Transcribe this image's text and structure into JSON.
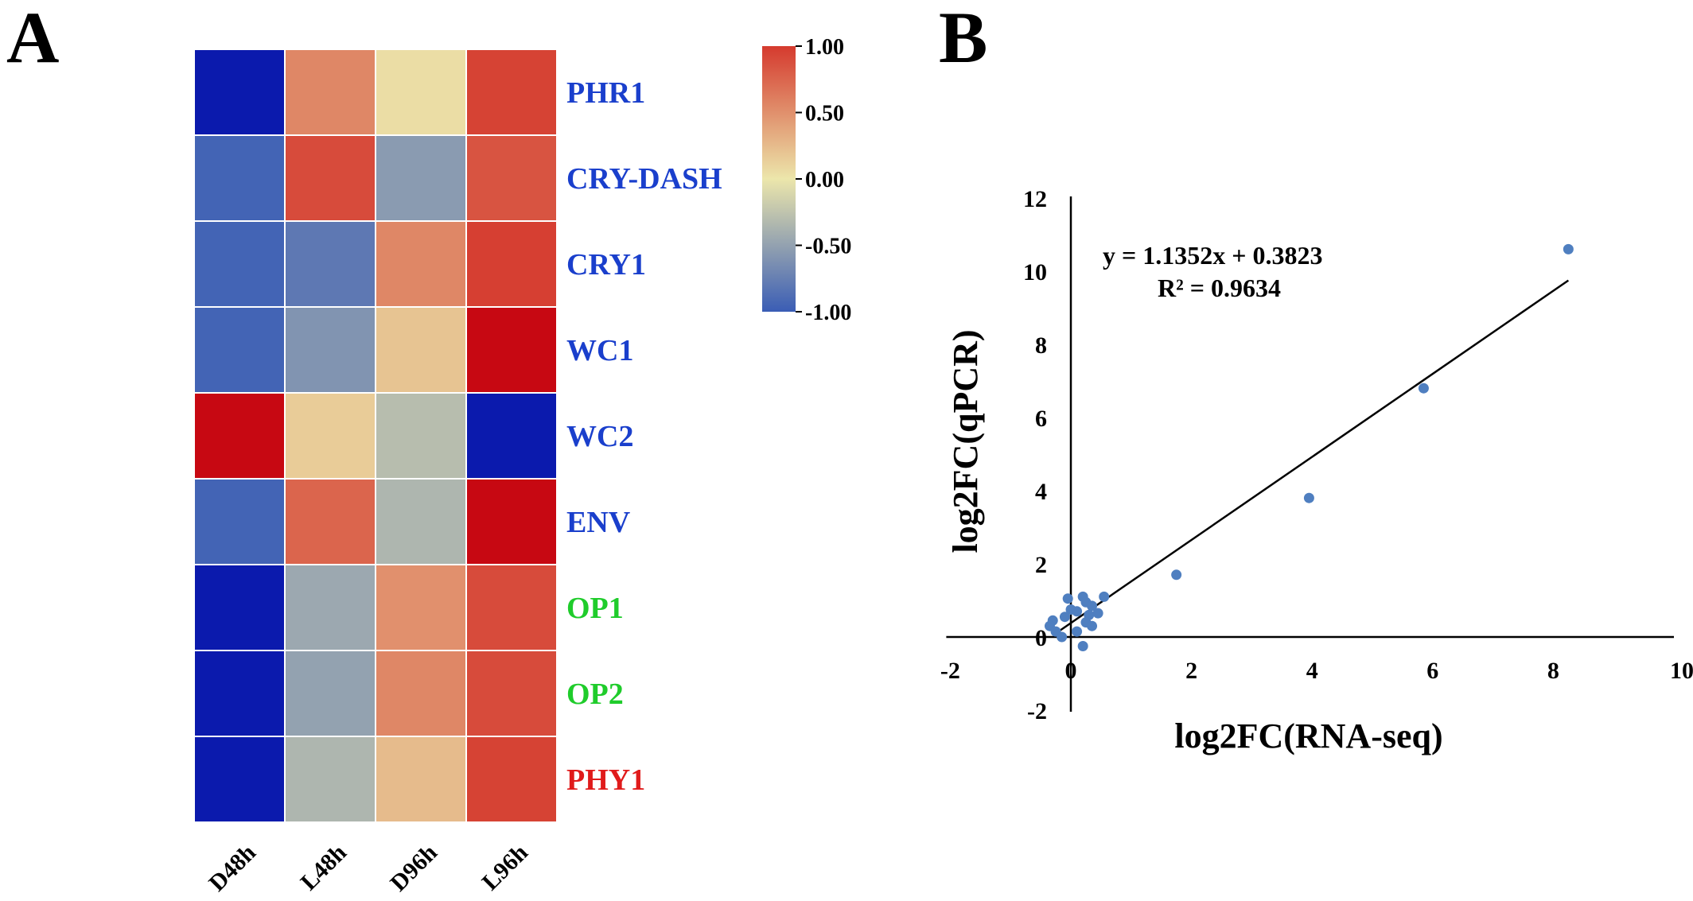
{
  "panels": {
    "a_label": "A",
    "b_label": "B"
  },
  "chart_data": [
    {
      "type": "heatmap",
      "columns": [
        "D48h",
        "L48h",
        "D96h",
        "L96h"
      ],
      "rows": [
        {
          "gene": "PHR1",
          "color": "#1a3fcc",
          "values": [
            -1.0,
            0.55,
            0.05,
            0.95
          ]
        },
        {
          "gene": "CRY-DASH",
          "color": "#1a3fcc",
          "values": [
            -0.95,
            0.9,
            -0.55,
            0.85
          ]
        },
        {
          "gene": "CRY1",
          "color": "#1a3fcc",
          "values": [
            -0.95,
            -0.8,
            0.55,
            0.97
          ]
        },
        {
          "gene": "WC1",
          "color": "#1a3fcc",
          "values": [
            -0.95,
            -0.6,
            0.2,
            1.0
          ]
        },
        {
          "gene": "WC2",
          "color": "#1a3fcc",
          "values": [
            1.0,
            0.15,
            -0.3,
            -1.0
          ]
        },
        {
          "gene": "ENV",
          "color": "#1a3fcc",
          "values": [
            -0.95,
            0.75,
            -0.35,
            1.0
          ]
        },
        {
          "gene": "OP1",
          "color": "#1fcc2b",
          "values": [
            -1.0,
            -0.45,
            0.5,
            0.9
          ]
        },
        {
          "gene": "OP2",
          "color": "#1fcc2b",
          "values": [
            -1.0,
            -0.5,
            0.55,
            0.9
          ]
        },
        {
          "gene": "PHY1",
          "color": "#e01b1b",
          "values": [
            -1.0,
            -0.35,
            0.25,
            0.95
          ]
        }
      ],
      "colorbar": {
        "ticks": [
          "1.00",
          "0.50",
          "0.00",
          "-0.50",
          "-1.00"
        ],
        "tick_values": [
          1.0,
          0.5,
          0.0,
          -0.5,
          -1.0
        ],
        "range": [
          -1.0,
          1.0
        ],
        "colors": [
          "#3a5db5",
          "#ece6ab",
          "#d53a2e"
        ]
      }
    },
    {
      "type": "scatter",
      "xlabel": "log2FC(RNA-seq)",
      "ylabel": "log2FC(qPCR)",
      "xlim": [
        -2,
        10
      ],
      "ylim": [
        -2,
        12
      ],
      "xticks": [
        -2,
        0,
        2,
        4,
        6,
        8,
        10
      ],
      "yticks": [
        -2,
        0,
        2,
        4,
        6,
        8,
        10,
        12
      ],
      "xtick_labels": [
        "-2",
        "0",
        "2",
        "4",
        "6",
        "8",
        "10"
      ],
      "ytick_labels": [
        "-2",
        "0",
        "2",
        "4",
        "6",
        "8",
        "10",
        "12"
      ],
      "point_color": "#4f7fc0",
      "points": [
        [
          8.25,
          10.6
        ],
        [
          5.85,
          6.8
        ],
        [
          3.95,
          3.8
        ],
        [
          1.75,
          1.7
        ],
        [
          -0.05,
          1.05
        ],
        [
          0.2,
          1.1
        ],
        [
          0.25,
          0.95
        ],
        [
          0.55,
          1.1
        ],
        [
          0.35,
          0.85
        ],
        [
          0.45,
          0.65
        ],
        [
          0.1,
          0.7
        ],
        [
          0.3,
          0.6
        ],
        [
          -0.1,
          0.55
        ],
        [
          -0.3,
          0.45
        ],
        [
          -0.35,
          0.3
        ],
        [
          0.25,
          0.4
        ],
        [
          0.35,
          0.3
        ],
        [
          -0.25,
          0.15
        ],
        [
          0.1,
          0.15
        ],
        [
          -0.15,
          0.0
        ],
        [
          0.2,
          -0.25
        ],
        [
          0.0,
          0.75
        ]
      ],
      "trendline": {
        "slope": 1.1352,
        "intercept": 0.3823,
        "x_range": [
          -0.2,
          8.25
        ]
      },
      "equation": "y = 1.1352x + 0.3823",
      "r_squared": "R² = 0.9634"
    }
  ]
}
